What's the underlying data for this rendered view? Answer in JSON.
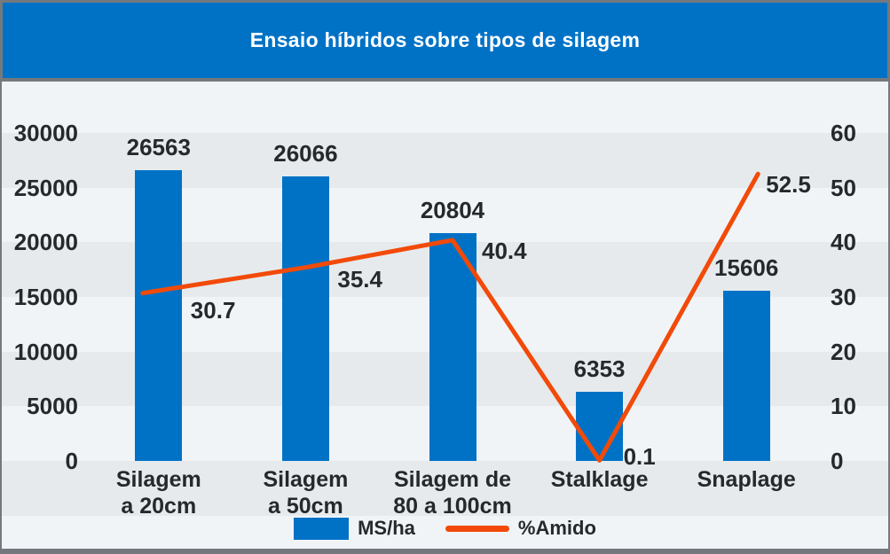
{
  "title": "Ensaio híbridos sobre tipos de silagem",
  "colors": {
    "brand_blue": "#0072c6",
    "line_orange": "#f24a09",
    "background_light": "#f0f4f7",
    "stripe_gray": "#e6eaed",
    "frame_gray": "#75797d",
    "text_dark": "#26292c",
    "title_text": "#ffffff"
  },
  "chart_data": {
    "type": "bar",
    "subtype": "combo-bar-line-dual-axis",
    "title": "Ensaio híbridos sobre tipos de silagem",
    "categories": [
      "Silagem a 20cm",
      "Silagem a 50cm",
      "Silagem de 80 a 100cm",
      "Stalklage",
      "Snaplage"
    ],
    "categories_display": [
      [
        "Silagem",
        "a 20cm"
      ],
      [
        "Silagem",
        "a 50cm"
      ],
      [
        "Silagem de",
        "80 a 100cm"
      ],
      [
        "Stalklage"
      ],
      [
        "Snaplage"
      ]
    ],
    "series": [
      {
        "name": "MS/ha",
        "type": "bar",
        "axis": "left",
        "color": "#0072c6",
        "values": [
          26563,
          26066,
          20804,
          6353,
          15606
        ],
        "value_labels": [
          "26563",
          "26066",
          "20804",
          "6353",
          "15606"
        ]
      },
      {
        "name": "%Amido",
        "type": "line",
        "axis": "right",
        "color": "#f24a09",
        "values": [
          30.7,
          35.4,
          40.4,
          0.1,
          52.5
        ],
        "value_labels": [
          "30.7",
          "35.4",
          "40.4",
          "0.1",
          "52.5"
        ]
      }
    ],
    "left_axis": {
      "min": 0,
      "max": 30000,
      "tick_labels_top_to_bottom": [
        "30000",
        "25000",
        "20000",
        "15000",
        "10000",
        "5000",
        "0"
      ]
    },
    "right_axis": {
      "min": 0,
      "max": 60,
      "tick_labels_top_to_bottom": [
        "60",
        "50",
        "40",
        "30",
        "20",
        "10",
        "0"
      ]
    },
    "grid": "alternating-horizontal-bands",
    "legend_position": "bottom"
  },
  "legend": {
    "items": [
      {
        "label": "MS/ha",
        "color": "#0072c6",
        "swatch": "rect"
      },
      {
        "label": "%Amido",
        "color": "#f24a09",
        "swatch": "line"
      }
    ]
  }
}
